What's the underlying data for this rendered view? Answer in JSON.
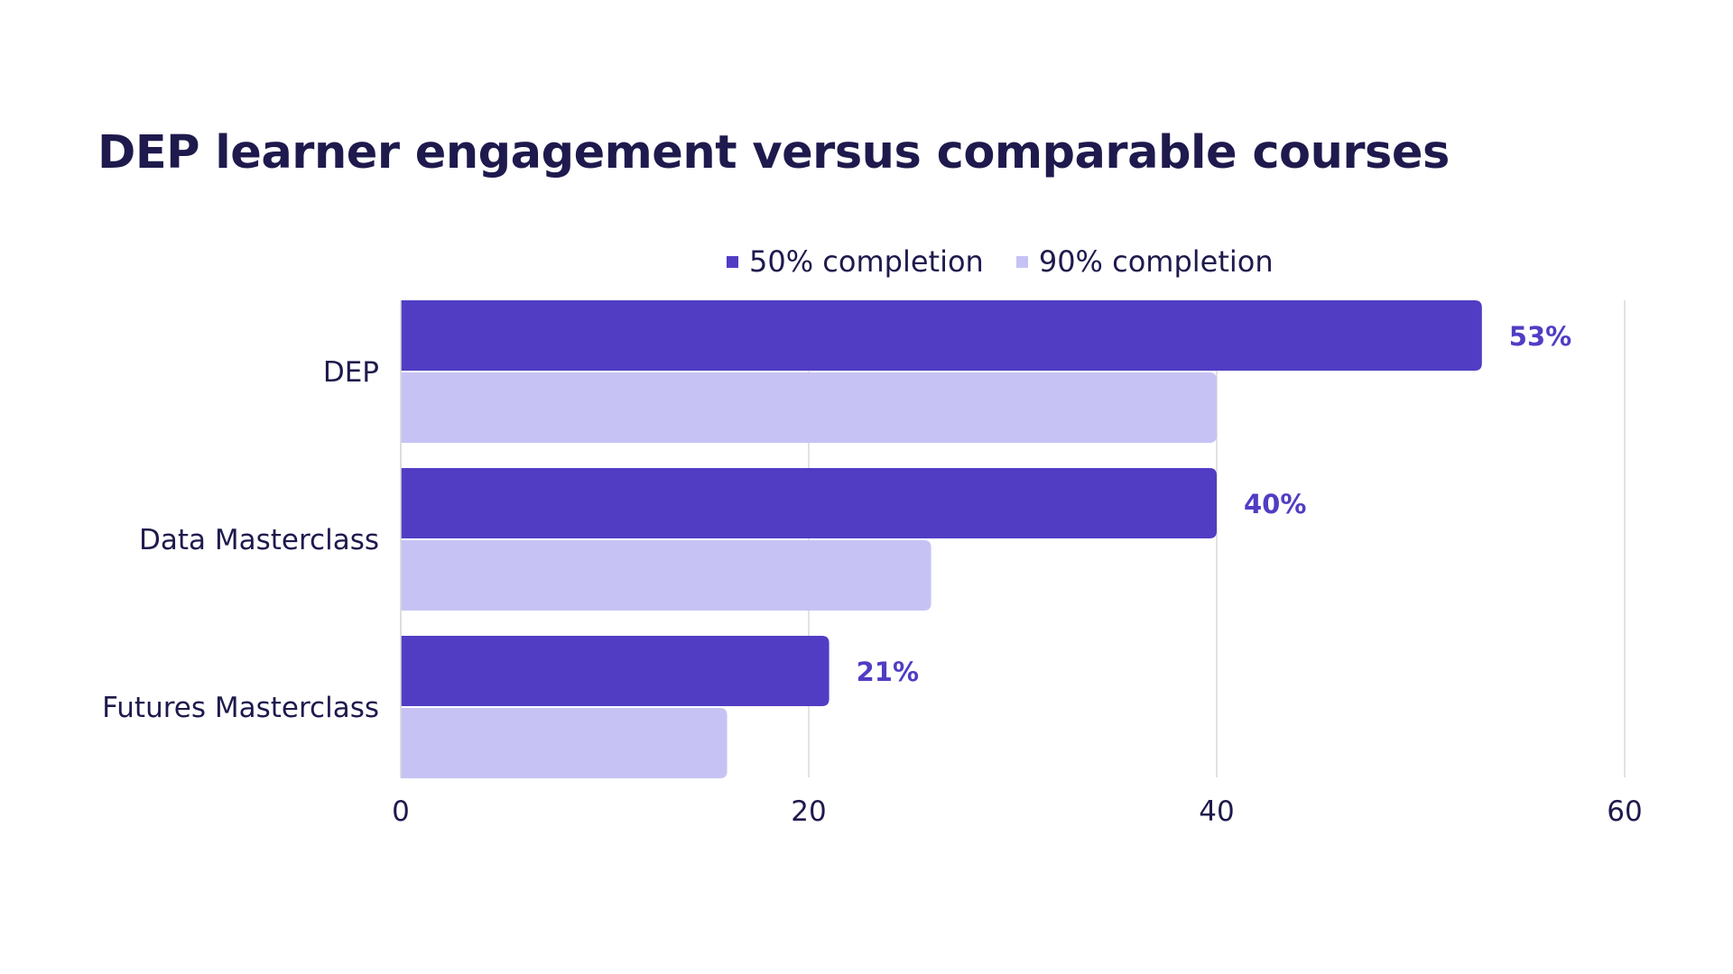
{
  "chart_data": {
    "type": "bar",
    "orientation": "horizontal",
    "title": "DEP learner engagement versus comparable courses",
    "categories": [
      "DEP",
      "Data Masterclass",
      "Futures Masterclass"
    ],
    "series": [
      {
        "name": "50% completion",
        "values": [
          53,
          40,
          21
        ],
        "color": "#503dc4",
        "labels": [
          "53%",
          "40%",
          "21%"
        ]
      },
      {
        "name": "90% completion",
        "values": [
          40,
          26,
          16
        ],
        "color": "#c6c3f4"
      }
    ],
    "xlim": [
      0,
      60
    ],
    "xticks": [
      0,
      20,
      40,
      60
    ],
    "xtick_labels": [
      "0",
      "20",
      "40",
      "60"
    ],
    "grid": true,
    "legend_position": "top"
  }
}
